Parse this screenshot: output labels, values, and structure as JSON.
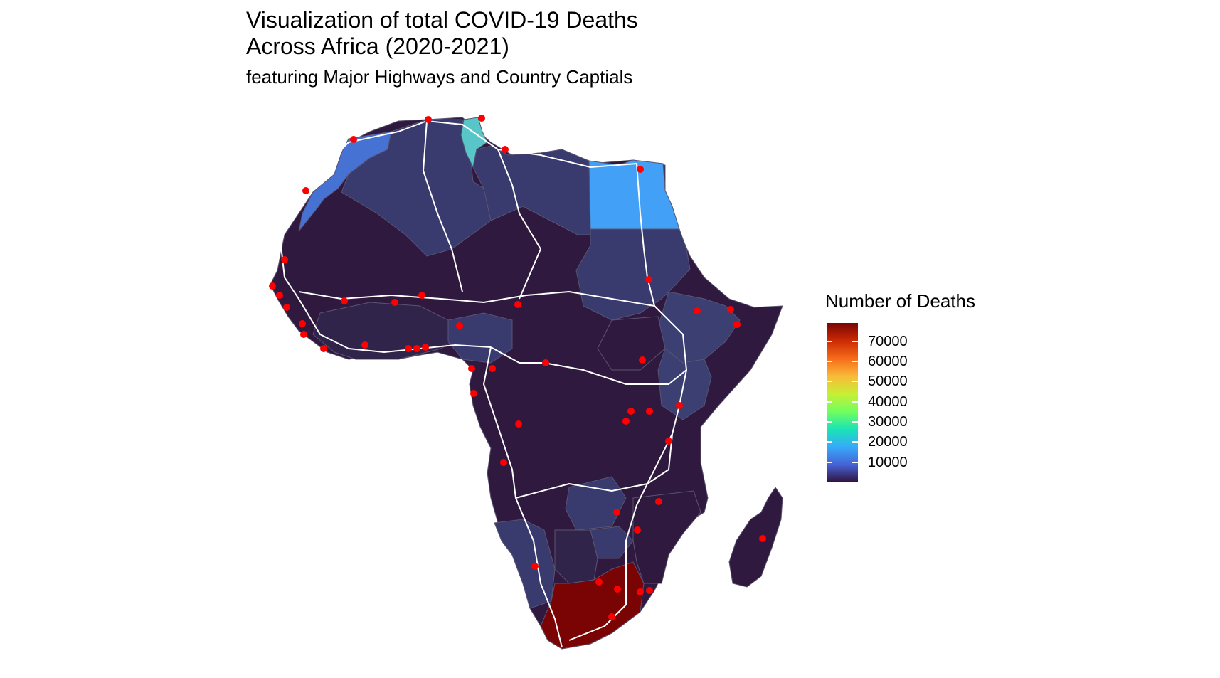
{
  "title_line1": "Visualization of total COVID-19 Deaths",
  "title_line2": "Across Africa (2020-2021)",
  "subtitle": "featuring Major Highways and Country Captials",
  "legend": {
    "title": "Number of Deaths",
    "ticks": [
      "70000",
      "60000",
      "50000",
      "40000",
      "30000",
      "20000",
      "10000"
    ],
    "tick_values": [
      70000,
      60000,
      50000,
      40000,
      30000,
      20000,
      10000
    ],
    "min": 0,
    "max": 79000,
    "gradient_colors": [
      "#30123b",
      "#4662d7",
      "#36aaf9",
      "#1ae4b6",
      "#72fe5e",
      "#c7ef34",
      "#faba39",
      "#f66b19",
      "#cb2a04",
      "#7a0403"
    ]
  },
  "colors": {
    "default_country": "#30193f",
    "border": "#5a5472",
    "highway": "#ffffff",
    "capital": "#ff0000"
  },
  "map_data": {
    "south_africa": {
      "deaths": 77000,
      "color": "#7a0403"
    },
    "egypt": {
      "deaths": 16000,
      "color": "#42a1f6"
    },
    "tunisia": {
      "deaths": 25000,
      "color": "#58c5c8"
    },
    "morocco": {
      "deaths": 14000,
      "color": "#4572d3"
    },
    "algeria": {
      "deaths": 6000,
      "color": "#393a6e"
    },
    "libya": {
      "deaths": 5800,
      "color": "#393a6e"
    }
  }
}
